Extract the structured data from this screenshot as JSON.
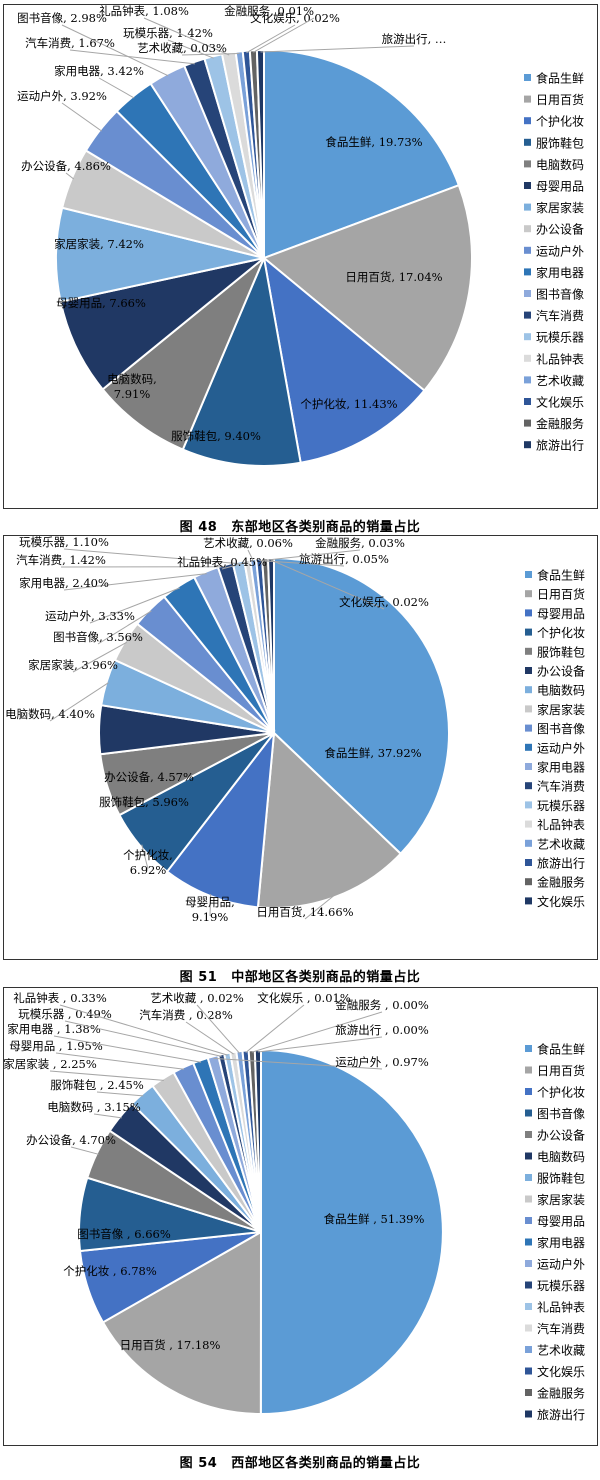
{
  "figures": [
    {
      "number": "图 48",
      "caption": "东部地区各类别商品的销量占比",
      "chart_data": {
        "type": "pie",
        "unit": "%",
        "categories": [
          "食品生鲜",
          "日用百货",
          "个护化妆",
          "服饰鞋包",
          "电脑数码",
          "母婴用品",
          "家居家装",
          "办公设备",
          "运动户外",
          "家用电器",
          "图书音像",
          "汽车消费",
          "玩模乐器",
          "礼品钟表",
          "艺术收藏",
          "文化娱乐",
          "金融服务",
          "旅游出行"
        ],
        "values": [
          19.73,
          17.04,
          11.43,
          9.4,
          7.91,
          7.66,
          7.42,
          4.86,
          3.92,
          3.42,
          2.98,
          1.67,
          1.42,
          1.08,
          0.03,
          0.02,
          0.01,
          null
        ],
        "labels": [
          "食品生鲜, 19.73%",
          "日用百货, 17.04%",
          "个护化妆, 11.43%",
          "服饰鞋包, 9.40%",
          "电脑数码,\n7.91%",
          "母婴用品, 7.66%",
          "家居家装, 7.42%",
          "办公设备, 4.86%",
          "运动户外, 3.92%",
          "家用电器, 3.42%",
          "图书音像, 2.98%",
          "汽车消费, 1.67%",
          "玩模乐器, 1.42%",
          "礼品钟表, 1.08%",
          "艺术收藏, 0.03%",
          "文化娱乐, 0.02%",
          "金融服务, 0.01%",
          "旅游出行, …"
        ],
        "legend": [
          "食品生鲜",
          "日用百货",
          "个护化妆",
          "服饰鞋包",
          "电脑数码",
          "母婴用品",
          "家居家装",
          "办公设备",
          "运动户外",
          "家用电器",
          "图书音像",
          "汽车消费",
          "玩模乐器",
          "礼品钟表",
          "艺术收藏",
          "文化娱乐",
          "金融服务",
          "旅游出行"
        ],
        "legend_position": "right"
      }
    },
    {
      "number": "图 51",
      "caption": "中部地区各类别商品的销量占比",
      "chart_data": {
        "type": "pie",
        "unit": "%",
        "categories": [
          "食品生鲜",
          "日用百货",
          "母婴用品",
          "个护化妆",
          "服饰鞋包",
          "办公设备",
          "电脑数码",
          "家居家装",
          "图书音像",
          "运动户外",
          "家用电器",
          "汽车消费",
          "玩模乐器",
          "礼品钟表",
          "艺术收藏",
          "旅游出行",
          "金融服务",
          "文化娱乐"
        ],
        "values": [
          37.92,
          14.66,
          9.19,
          6.92,
          5.96,
          4.57,
          4.4,
          3.96,
          3.56,
          3.33,
          2.4,
          1.42,
          1.1,
          0.45,
          0.06,
          0.05,
          0.03,
          0.02
        ],
        "labels": [
          "食品生鲜, 37.92%",
          "日用百货, 14.66%",
          "母婴用品,\n9.19%",
          "个护化妆,\n6.92%",
          "服饰鞋包, 5.96%",
          "办公设备, 4.57%",
          "电脑数码, 4.40%",
          "家居家装, 3.96%",
          "图书音像, 3.56%",
          "运动户外, 3.33%",
          "家用电器, 2.40%",
          "汽车消费, 1.42%",
          "玩模乐器, 1.10%",
          "礼品钟表, 0.45%",
          "艺术收藏, 0.06%",
          "旅游出行, 0.05%",
          "金融服务, 0.03%",
          "文化娱乐, 0.02%"
        ],
        "legend": [
          "食品生鲜",
          "日用百货",
          "母婴用品",
          "个护化妆",
          "服饰鞋包",
          "办公设备",
          "电脑数码",
          "家居家装",
          "图书音像",
          "运动户外",
          "家用电器",
          "汽车消费",
          "玩模乐器",
          "礼品钟表",
          "艺术收藏",
          "旅游出行",
          "金融服务",
          "文化娱乐"
        ],
        "legend_position": "right"
      }
    },
    {
      "number": "图 54",
      "caption": "西部地区各类别商品的销量占比",
      "chart_data": {
        "type": "pie",
        "unit": "%",
        "categories": [
          "食品生鲜",
          "日用百货",
          "个护化妆",
          "图书音像",
          "办公设备",
          "电脑数码",
          "服饰鞋包",
          "家居家装",
          "母婴用品",
          "家用电器",
          "运动户外",
          "玩模乐器",
          "礼品钟表",
          "汽车消费",
          "艺术收藏",
          "文化娱乐",
          "金融服务",
          "旅游出行"
        ],
        "values": [
          51.39,
          17.18,
          6.78,
          6.66,
          4.7,
          3.15,
          2.45,
          2.25,
          1.95,
          1.38,
          0.97,
          0.49,
          0.33,
          0.28,
          0.02,
          0.01,
          0.0,
          0.0
        ],
        "labels": [
          "食品生鲜 , 51.39%",
          "日用百货 , 17.18%",
          "个护化妆 , 6.78%",
          "图书音像 , 6.66%",
          "办公设备, 4.70%",
          "电脑数码 , 3.15%",
          "服饰鞋包 , 2.45%",
          "家居家装 , 2.25%",
          "母婴用品 , 1.95%",
          "家用电器 , 1.38%",
          "运动户外 , 0.97%",
          "玩模乐器 , 0.49%",
          "礼品钟表 , 0.33%",
          "汽车消费 , 0.28%",
          "艺术收藏 , 0.02%",
          "文化娱乐 , 0.01%",
          "金融服务 , 0.00%",
          "旅游出行 , 0.00%"
        ],
        "legend": [
          "食品生鲜",
          "日用百货",
          "个护化妆",
          "图书音像",
          "办公设备",
          "电脑数码",
          "服饰鞋包",
          "家居家装",
          "母婴用品",
          "家用电器",
          "运动户外",
          "玩模乐器",
          "礼品钟表",
          "汽车消费",
          "艺术收藏",
          "文化娱乐",
          "金融服务",
          "旅游出行"
        ],
        "legend_position": "right"
      }
    }
  ],
  "palette": [
    "#5b9bd5",
    "#a5a5a5",
    "#4472c4",
    "#255e91",
    "#7f7f7f",
    "#203864",
    "#7cafdd",
    "#c9c9c9",
    "#698ed0",
    "#2e75b6",
    "#8faadc",
    "#264478",
    "#9dc3e6",
    "#dbdbdb",
    "#7aa1d9",
    "#2f5597",
    "#636363",
    "#1f3864"
  ]
}
